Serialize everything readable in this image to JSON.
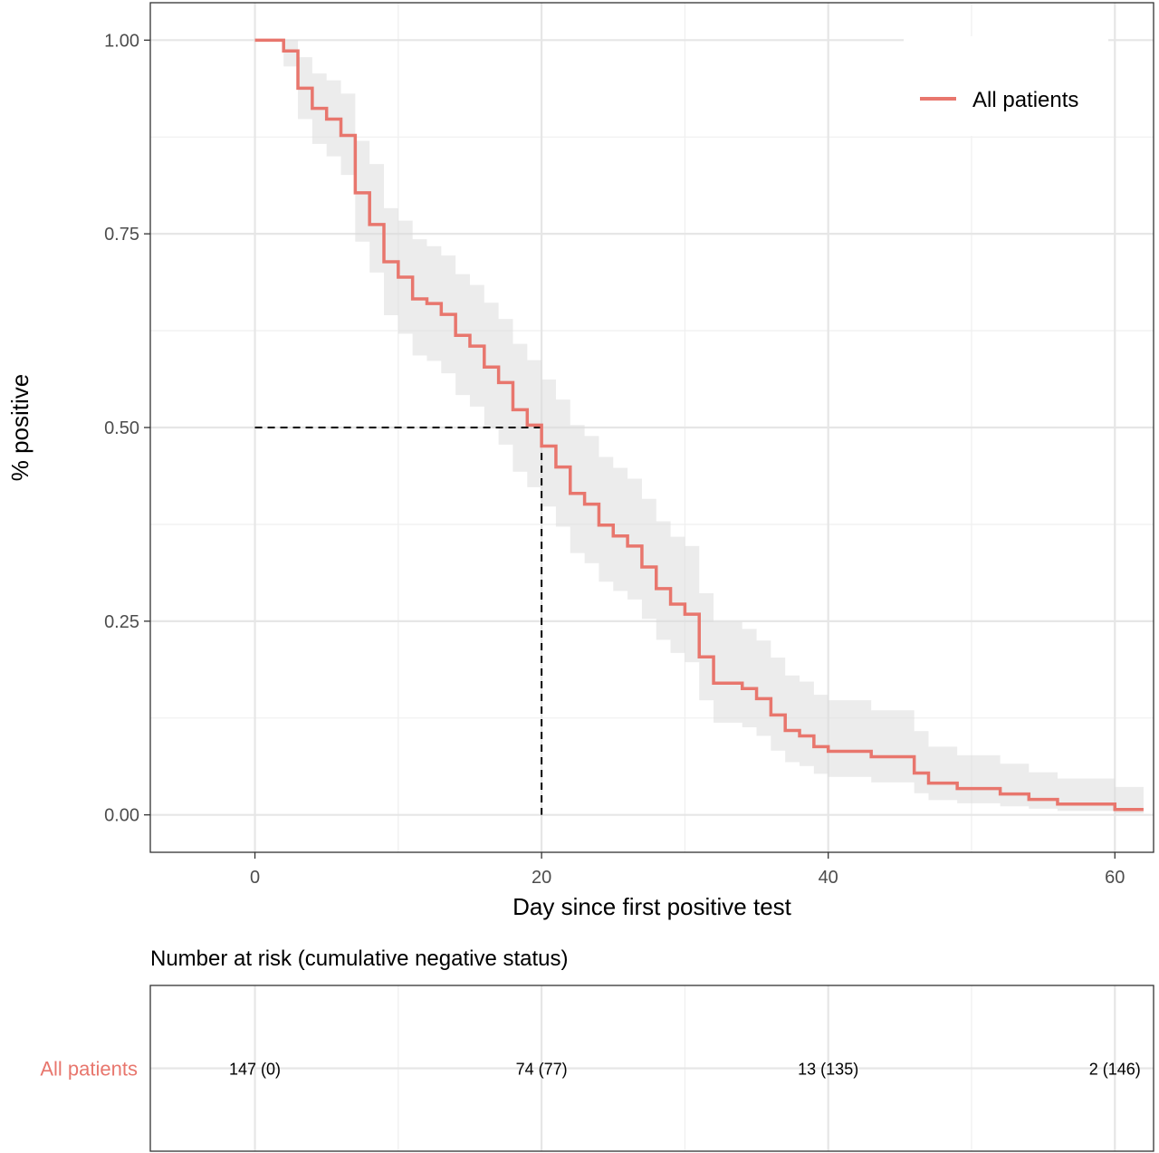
{
  "chart_data": {
    "type": "line",
    "subtype": "kaplan-meier-step",
    "xlabel": "Day since first positive test",
    "ylabel": "% positive",
    "xlim": [
      -7.3,
      62.7
    ],
    "ylim": [
      -0.0483,
      1.0483
    ],
    "x_ticks": [
      0,
      20,
      40,
      60
    ],
    "x_tick_labels": [
      "0",
      "20",
      "40",
      "60"
    ],
    "y_ticks": [
      0,
      0.25,
      0.5,
      0.75,
      1.0
    ],
    "y_tick_labels": [
      "0.00",
      "0.25",
      "0.50",
      "0.75",
      "1.00"
    ],
    "grid": true,
    "legend_position": "top-right",
    "series": [
      {
        "name": "All patients",
        "color": "#e8766d",
        "steps": [
          [
            0,
            1.0
          ],
          [
            2,
            0.986
          ],
          [
            3,
            0.938
          ],
          [
            4,
            0.912
          ],
          [
            5,
            0.898
          ],
          [
            6,
            0.877
          ],
          [
            7,
            0.803
          ],
          [
            8,
            0.762
          ],
          [
            9,
            0.714
          ],
          [
            10,
            0.694
          ],
          [
            11,
            0.666
          ],
          [
            12,
            0.66
          ],
          [
            13,
            0.646
          ],
          [
            14,
            0.619
          ],
          [
            15,
            0.605
          ],
          [
            16,
            0.578
          ],
          [
            17,
            0.558
          ],
          [
            18,
            0.523
          ],
          [
            19,
            0.503
          ],
          [
            20,
            0.476
          ],
          [
            21,
            0.449
          ],
          [
            22,
            0.415
          ],
          [
            23,
            0.401
          ],
          [
            24,
            0.374
          ],
          [
            25,
            0.36
          ],
          [
            26,
            0.347
          ],
          [
            27,
            0.32
          ],
          [
            28,
            0.292
          ],
          [
            29,
            0.272
          ],
          [
            30,
            0.259
          ],
          [
            31,
            0.204
          ],
          [
            32,
            0.17
          ],
          [
            34,
            0.163
          ],
          [
            35,
            0.15
          ],
          [
            36,
            0.129
          ],
          [
            37,
            0.109
          ],
          [
            38,
            0.102
          ],
          [
            39,
            0.088
          ],
          [
            40,
            0.082
          ],
          [
            43,
            0.075
          ],
          [
            46,
            0.054
          ],
          [
            47,
            0.041
          ],
          [
            49,
            0.034
          ],
          [
            52,
            0.027
          ],
          [
            54,
            0.02
          ],
          [
            56,
            0.014
          ],
          [
            60,
            0.007
          ],
          [
            62,
            0.007
          ]
        ],
        "ci_band": [
          [
            0,
            1.0,
            1.0
          ],
          [
            2,
            1.0,
            0.966
          ],
          [
            3,
            0.978,
            0.898
          ],
          [
            4,
            0.957,
            0.866
          ],
          [
            5,
            0.948,
            0.85
          ],
          [
            6,
            0.931,
            0.826
          ],
          [
            7,
            0.87,
            0.74
          ],
          [
            8,
            0.84,
            0.7
          ],
          [
            9,
            0.783,
            0.645
          ],
          [
            10,
            0.767,
            0.621
          ],
          [
            11,
            0.743,
            0.593
          ],
          [
            12,
            0.734,
            0.586
          ],
          [
            13,
            0.722,
            0.57
          ],
          [
            14,
            0.698,
            0.542
          ],
          [
            15,
            0.684,
            0.527
          ],
          [
            16,
            0.661,
            0.5
          ],
          [
            17,
            0.64,
            0.478
          ],
          [
            18,
            0.608,
            0.443
          ],
          [
            19,
            0.587,
            0.423
          ],
          [
            20,
            0.562,
            0.398
          ],
          [
            21,
            0.536,
            0.372
          ],
          [
            22,
            0.503,
            0.338
          ],
          [
            23,
            0.489,
            0.325
          ],
          [
            24,
            0.462,
            0.301
          ],
          [
            25,
            0.448,
            0.289
          ],
          [
            26,
            0.434,
            0.278
          ],
          [
            27,
            0.408,
            0.253
          ],
          [
            28,
            0.379,
            0.226
          ],
          [
            29,
            0.359,
            0.209
          ],
          [
            30,
            0.347,
            0.197
          ],
          [
            31,
            0.286,
            0.148
          ],
          [
            32,
            0.249,
            0.119
          ],
          [
            34,
            0.24,
            0.113
          ],
          [
            35,
            0.225,
            0.102
          ],
          [
            36,
            0.203,
            0.083
          ],
          [
            37,
            0.18,
            0.068
          ],
          [
            38,
            0.172,
            0.063
          ],
          [
            39,
            0.155,
            0.053
          ],
          [
            40,
            0.148,
            0.049
          ],
          [
            43,
            0.135,
            0.042
          ],
          [
            46,
            0.108,
            0.028
          ],
          [
            47,
            0.088,
            0.019
          ],
          [
            49,
            0.077,
            0.015
          ],
          [
            52,
            0.066,
            0.011
          ],
          [
            54,
            0.055,
            0.008
          ],
          [
            56,
            0.047,
            0.005
          ],
          [
            60,
            0.036,
            0.002
          ],
          [
            62,
            0.036,
            0.002
          ]
        ]
      }
    ],
    "median_reference": {
      "x": 20,
      "y": 0.5
    },
    "risk_table": {
      "title": "Number at risk (cumulative negative status)",
      "row_label": "All patients",
      "times": [
        0,
        20,
        40,
        60
      ],
      "cells": [
        "147 (0)",
        "74 (77)",
        "13 (135)",
        "2 (146)"
      ]
    }
  }
}
